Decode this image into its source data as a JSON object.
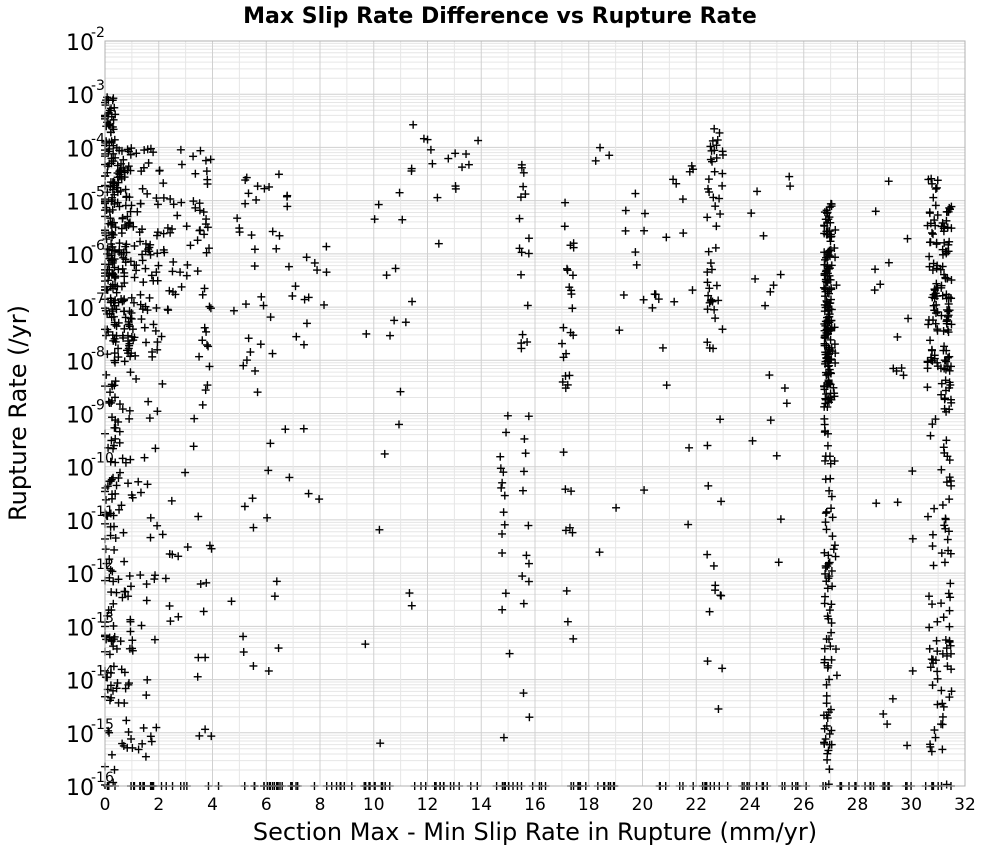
{
  "chart_data": {
    "type": "scatter",
    "title": "Max Slip Rate Difference vs Rupture Rate",
    "xlabel": "Section Max - Min Slip Rate in Rupture (mm/yr)",
    "ylabel": "Rupture Rate (/yr)",
    "xlim": [
      0,
      32
    ],
    "ylim": [
      1e-16,
      0.01
    ],
    "yscale": "log",
    "grid": true,
    "marker": "+",
    "marker_color": "#000000",
    "x_ticks": [
      "0",
      "2",
      "4",
      "6",
      "8",
      "10",
      "12",
      "14",
      "16",
      "18",
      "20",
      "22",
      "24",
      "26",
      "28",
      "30",
      "32"
    ],
    "y_ticks": [
      {
        "base": "10",
        "exp": "-16"
      },
      {
        "base": "10",
        "exp": "-15"
      },
      {
        "base": "10",
        "exp": "-14"
      },
      {
        "base": "10",
        "exp": "-13"
      },
      {
        "base": "10",
        "exp": "-12"
      },
      {
        "base": "10",
        "exp": "-11"
      },
      {
        "base": "10",
        "exp": "-10"
      },
      {
        "base": "10",
        "exp": "-9"
      },
      {
        "base": "10",
        "exp": "-8"
      },
      {
        "base": "10",
        "exp": "-7"
      },
      {
        "base": "10",
        "exp": "-6"
      },
      {
        "base": "10",
        "exp": "-5"
      },
      {
        "base": "10",
        "exp": "-4"
      },
      {
        "base": "10",
        "exp": "-3"
      },
      {
        "base": "10",
        "exp": "-2"
      }
    ],
    "clusters": [
      {
        "x": 0.15,
        "x_spread": 0.25,
        "log_y_range": [
          -16,
          -3
        ],
        "count": 220
      },
      {
        "x": 0.6,
        "x_spread": 0.4,
        "log_y_range": [
          -15.5,
          -4
        ],
        "count": 170
      },
      {
        "x": 1.3,
        "x_spread": 0.7,
        "log_y_range": [
          -15.5,
          -4
        ],
        "count": 110
      },
      {
        "x": 2.5,
        "x_spread": 1.0,
        "log_y_range": [
          -13,
          -4
        ],
        "count": 60
      },
      {
        "x": 3.7,
        "x_spread": 0.3,
        "log_y_range": [
          -15.5,
          -4
        ],
        "count": 45
      },
      {
        "x": 5.6,
        "x_spread": 0.9,
        "log_y_range": [
          -14.5,
          -4.5
        ],
        "count": 45
      },
      {
        "x": 7.5,
        "x_spread": 0.8,
        "log_y_range": [
          -11,
          -4.8
        ],
        "count": 22
      },
      {
        "x": 10.5,
        "x_spread": 1.0,
        "log_y_range": [
          -15.5,
          -3.5
        ],
        "count": 22
      },
      {
        "x": 12.8,
        "x_spread": 1.2,
        "log_y_range": [
          -6,
          -3.8
        ],
        "count": 14
      },
      {
        "x": 14.9,
        "x_spread": 0.2,
        "log_y_range": [
          -15.5,
          -9
        ],
        "count": 16
      },
      {
        "x": 15.6,
        "x_spread": 0.2,
        "log_y_range": [
          -15.5,
          -4.2
        ],
        "count": 30
      },
      {
        "x": 17.2,
        "x_spread": 0.25,
        "log_y_range": [
          -15.3,
          -5
        ],
        "count": 32
      },
      {
        "x": 19.0,
        "x_spread": 0.8,
        "log_y_range": [
          -12.2,
          -3.3
        ],
        "count": 12
      },
      {
        "x": 21.0,
        "x_spread": 1.0,
        "log_y_range": [
          -12,
          -4.2
        ],
        "count": 22
      },
      {
        "x": 22.7,
        "x_spread": 0.3,
        "log_y_range": [
          -15.3,
          -3.6
        ],
        "count": 60
      },
      {
        "x": 24.8,
        "x_spread": 0.8,
        "log_y_range": [
          -12,
          -4
        ],
        "count": 18
      },
      {
        "x": 26.9,
        "x_spread": 0.15,
        "log_y_range": [
          -16,
          -5
        ],
        "count": 200
      },
      {
        "x": 27.0,
        "x_spread": 0.25,
        "log_y_range": [
          -15.5,
          -5.2
        ],
        "count": 60
      },
      {
        "x": 29.4,
        "x_spread": 0.8,
        "log_y_range": [
          -15.5,
          -4.5
        ],
        "count": 22
      },
      {
        "x": 30.8,
        "x_spread": 0.2,
        "log_y_range": [
          -16,
          -4.5
        ],
        "count": 90
      },
      {
        "x": 31.3,
        "x_spread": 0.2,
        "log_y_range": [
          -16,
          -5
        ],
        "count": 130
      }
    ],
    "floor_points": {
      "log_y": -16,
      "x_range": [
        0,
        31.5
      ],
      "count": 160
    }
  }
}
